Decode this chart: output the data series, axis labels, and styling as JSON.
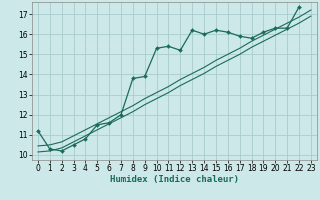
{
  "title": "",
  "xlabel": "Humidex (Indice chaleur)",
  "bg_color": "#cce8e8",
  "grid_color": "#aacccc",
  "line_color": "#1a6b5a",
  "xlim": [
    -0.5,
    23.5
  ],
  "ylim": [
    9.75,
    17.6
  ],
  "xticks": [
    0,
    1,
    2,
    3,
    4,
    5,
    6,
    7,
    8,
    9,
    10,
    11,
    12,
    13,
    14,
    15,
    16,
    17,
    18,
    19,
    20,
    21,
    22,
    23
  ],
  "yticks": [
    10,
    11,
    12,
    13,
    14,
    15,
    16,
    17
  ],
  "curve1_x": [
    0,
    1,
    2,
    3,
    4,
    5,
    6,
    7,
    8,
    9,
    10,
    11,
    12,
    13,
    14,
    15,
    16,
    17,
    18,
    19,
    20,
    21,
    22
  ],
  "curve1_y": [
    11.2,
    10.3,
    10.2,
    10.5,
    10.8,
    11.5,
    11.6,
    12.0,
    13.8,
    13.9,
    15.3,
    15.4,
    15.2,
    16.2,
    16.0,
    16.2,
    16.1,
    15.9,
    15.8,
    16.1,
    16.3,
    16.3,
    17.35
  ],
  "curve2_x": [
    0,
    1,
    2,
    3,
    4,
    5,
    6,
    7,
    8,
    9,
    10,
    11,
    12,
    13,
    14,
    15,
    16,
    17,
    18,
    19,
    20,
    21,
    22,
    23
  ],
  "curve2_y": [
    10.45,
    10.5,
    10.65,
    10.95,
    11.25,
    11.55,
    11.85,
    12.15,
    12.45,
    12.8,
    13.1,
    13.4,
    13.75,
    14.05,
    14.35,
    14.7,
    15.0,
    15.3,
    15.65,
    15.95,
    16.25,
    16.55,
    16.85,
    17.2
  ],
  "curve3_x": [
    0,
    1,
    2,
    3,
    4,
    5,
    6,
    7,
    8,
    9,
    10,
    11,
    12,
    13,
    14,
    15,
    16,
    17,
    18,
    19,
    20,
    21,
    22,
    23
  ],
  "curve3_y": [
    10.15,
    10.2,
    10.35,
    10.65,
    10.95,
    11.25,
    11.55,
    11.85,
    12.15,
    12.5,
    12.8,
    13.1,
    13.45,
    13.75,
    14.05,
    14.4,
    14.7,
    15.0,
    15.35,
    15.65,
    15.95,
    16.25,
    16.55,
    16.9
  ]
}
